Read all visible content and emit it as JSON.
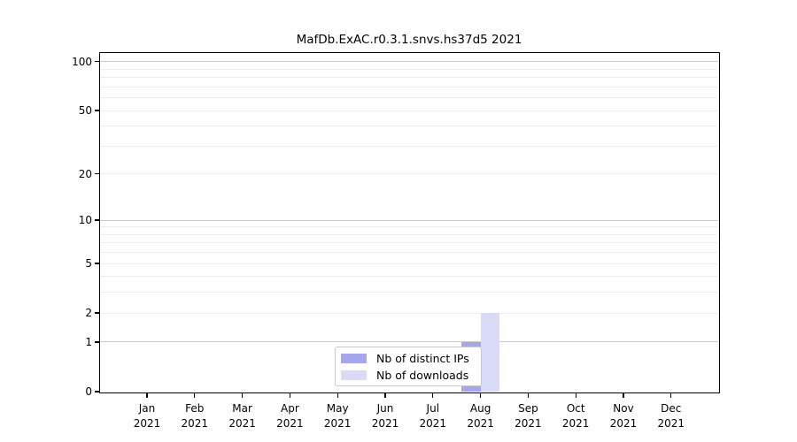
{
  "figure": {
    "background": "#ffffff"
  },
  "chart_data": {
    "type": "bar",
    "title": "MafDb.ExAC.r0.3.1.snvs.hs37d5 2021",
    "scale": "log1p",
    "categories": [
      "Jan",
      "Feb",
      "Mar",
      "Apr",
      "May",
      "Jun",
      "Jul",
      "Aug",
      "Sep",
      "Oct",
      "Nov",
      "Dec"
    ],
    "x_tick_year": "2021",
    "series": [
      {
        "name": "Nb of distinct IPs",
        "color": "#a6a6ec",
        "values": [
          0,
          0,
          0,
          0,
          0,
          0,
          0,
          1,
          0,
          0,
          0,
          0
        ]
      },
      {
        "name": "Nb of downloads",
        "color": "#d9d9f8",
        "values": [
          0,
          0,
          0,
          0,
          0,
          0,
          0,
          2,
          0,
          0,
          0,
          0
        ]
      }
    ],
    "yticks": [
      0,
      1,
      2,
      5,
      10,
      20,
      50,
      100
    ],
    "ylim": [
      0,
      113
    ],
    "xlabel": "",
    "ylabel": "",
    "grid": {
      "major_lines": [
        1,
        10,
        100
      ],
      "minor_lines": [
        2,
        3,
        4,
        5,
        6,
        7,
        8,
        9,
        20,
        30,
        40,
        50,
        60,
        70,
        80,
        90
      ],
      "major_color": "#c9c9c9",
      "minor_color": "#ececec"
    },
    "legend": {
      "position": "inside-bottom-center",
      "background": "#ffffff",
      "border_color": "#c8c8c8"
    },
    "axis_color": "#000000"
  }
}
